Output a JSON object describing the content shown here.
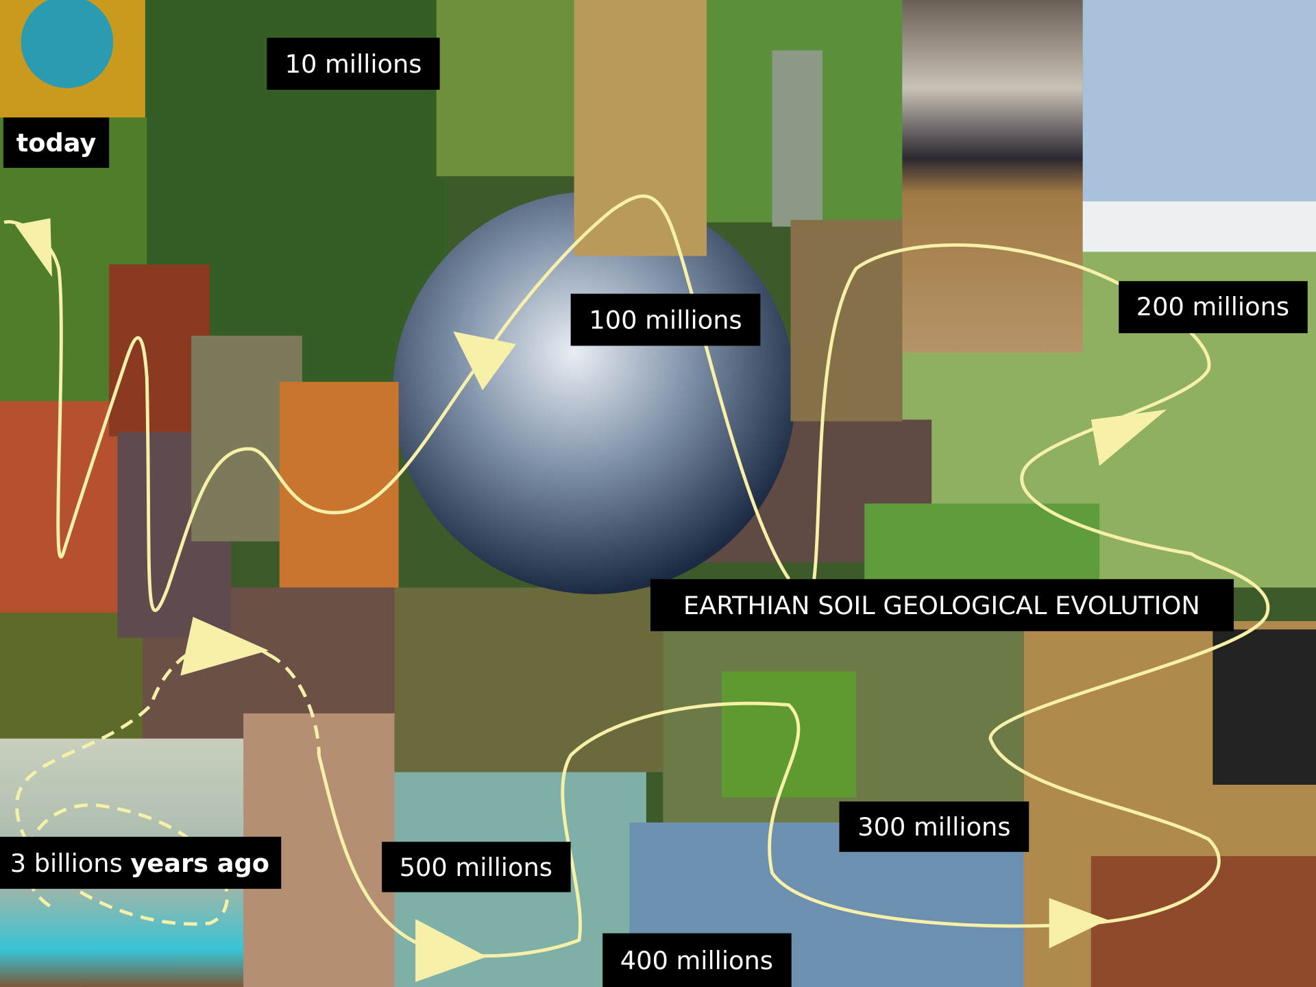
{
  "title": "EARTHIAN SOIL GEOLOGICAL EVOLUTION",
  "labels": [
    "today",
    "10 millions",
    "100 millions",
    "200 millions",
    "300 millions",
    "400 millions",
    "500 millions"
  ],
  "origin": {
    "amount": "3 billions",
    "suffix": "years ago"
  }
}
